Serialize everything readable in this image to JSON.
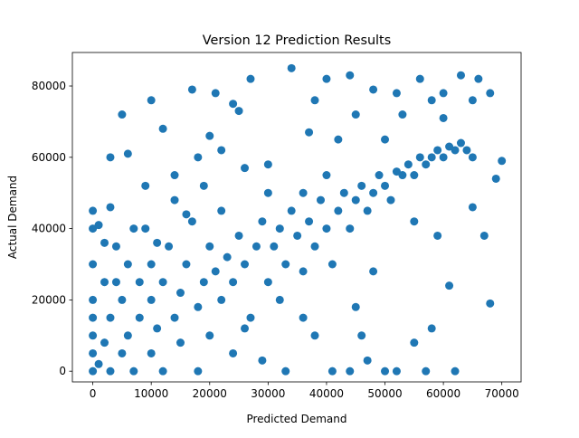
{
  "chart_data": {
    "type": "scatter",
    "title": "Version 12 Prediction Results",
    "x_label": "Predicted Demand",
    "y_label": "Actual Demand",
    "color": "#1f77b4",
    "x": [
      0,
      0,
      0,
      0,
      0,
      0,
      0,
      0,
      1000,
      2000,
      2000,
      3000,
      3000,
      4000,
      5000,
      5000,
      6000,
      6000,
      7000,
      8000,
      8000,
      9000,
      10000,
      10000,
      10000,
      11000,
      12000,
      12000,
      13000,
      14000,
      15000,
      15000,
      16000,
      17000,
      18000,
      18000,
      19000,
      20000,
      20000,
      21000,
      22000,
      22000,
      23000,
      24000,
      24000,
      25000,
      26000,
      27000,
      28000,
      29000,
      30000,
      30000,
      31000,
      32000,
      32000,
      33000,
      34000,
      35000,
      36000,
      36000,
      37000,
      38000,
      39000,
      40000,
      40000,
      41000,
      42000,
      43000,
      44000,
      45000,
      46000,
      47000,
      48000,
      49000,
      50000,
      51000,
      52000,
      53000,
      54000,
      55000,
      56000,
      57000,
      58000,
      59000,
      60000,
      61000,
      62000,
      63000,
      64000,
      65000,
      5000,
      10000,
      17000,
      21000,
      27000,
      34000,
      40000,
      44000,
      48000,
      52000,
      56000,
      60000,
      63000,
      66000,
      68000,
      70000,
      69000,
      65000,
      67000,
      68000,
      61000,
      58000,
      55000,
      52000,
      50000,
      47000,
      46000,
      41000,
      38000,
      36000,
      33000,
      29000,
      26000,
      45000,
      48000,
      55000,
      59000,
      62000,
      57000,
      44000,
      3000,
      6000,
      9000,
      14000,
      18000,
      22000,
      25000,
      30000,
      20000,
      12000,
      7000,
      3000,
      1000,
      2000,
      4000,
      37000,
      42000,
      50000,
      45000,
      38000,
      24000,
      14000,
      16000,
      11000,
      53000,
      60000,
      65000,
      58000,
      19000,
      26000
    ],
    "values": [
      0,
      5000,
      10000,
      15000,
      20000,
      30000,
      40000,
      45000,
      2000,
      8000,
      25000,
      0,
      15000,
      35000,
      5000,
      20000,
      10000,
      30000,
      0,
      15000,
      25000,
      40000,
      5000,
      20000,
      30000,
      12000,
      0,
      25000,
      35000,
      15000,
      8000,
      22000,
      30000,
      42000,
      0,
      18000,
      25000,
      10000,
      35000,
      28000,
      20000,
      45000,
      32000,
      5000,
      25000,
      38000,
      30000,
      15000,
      35000,
      42000,
      25000,
      50000,
      35000,
      20000,
      40000,
      30000,
      45000,
      38000,
      28000,
      50000,
      42000,
      35000,
      48000,
      40000,
      55000,
      30000,
      45000,
      50000,
      40000,
      48000,
      52000,
      45000,
      50000,
      55000,
      52000,
      48000,
      56000,
      55000,
      58000,
      55000,
      60000,
      58000,
      60000,
      62000,
      60000,
      63000,
      62000,
      64000,
      62000,
      60000,
      72000,
      76000,
      79000,
      78000,
      82000,
      85000,
      82000,
      83000,
      79000,
      78000,
      82000,
      78000,
      83000,
      82000,
      78000,
      59000,
      54000,
      46000,
      38000,
      19000,
      24000,
      12000,
      8000,
      0,
      0,
      3000,
      10000,
      0,
      10000,
      15000,
      0,
      3000,
      12000,
      18000,
      28000,
      42000,
      38000,
      0,
      0,
      0,
      60000,
      61000,
      52000,
      55000,
      60000,
      62000,
      73000,
      58000,
      66000,
      68000,
      40000,
      46000,
      41000,
      36000,
      25000,
      67000,
      65000,
      65000,
      72000,
      76000,
      75000,
      48000,
      44000,
      36000,
      72000,
      71000,
      76000,
      76000,
      52000,
      57000
    ],
    "xlim": [
      -3500,
      73300
    ],
    "ylim": [
      -3000,
      89400
    ],
    "xticks": [
      0,
      10000,
      20000,
      30000,
      40000,
      50000,
      60000,
      70000
    ],
    "yticks": [
      0,
      20000,
      40000,
      60000,
      80000
    ]
  }
}
